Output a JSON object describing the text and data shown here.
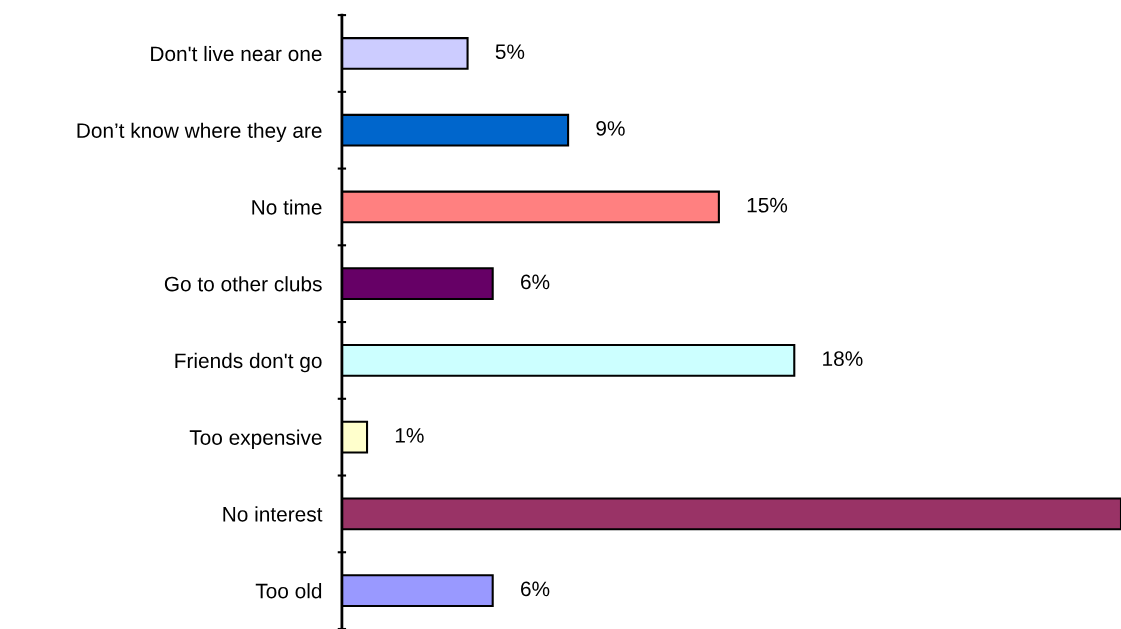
{
  "chart_data": {
    "type": "bar",
    "orientation": "horizontal",
    "categories": [
      "Don't live near one",
      "Don’t know where they are",
      "No time",
      "Go to other clubs",
      "Friends don't go",
      "Too expensive",
      "No interest",
      "Too old"
    ],
    "values": [
      5,
      9,
      15,
      6,
      18,
      1,
      31,
      6
    ],
    "value_labels": [
      "5%",
      "9%",
      "15%",
      "6%",
      "18%",
      "1%",
      null,
      "6%"
    ],
    "colors": [
      "#ccccff",
      "#0066cc",
      "#ff8080",
      "#660066",
      "#ccffff",
      "#ffffcc",
      "#993366",
      "#9999ff"
    ],
    "grid": false,
    "legend": false
  }
}
